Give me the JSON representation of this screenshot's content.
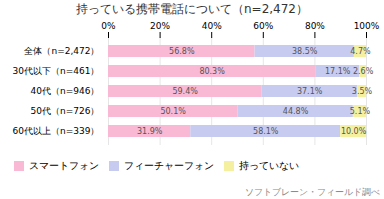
{
  "chart_data": {
    "type": "bar",
    "orientation": "horizontal",
    "stacked": true,
    "title": "持っている携帯電話について（n=2,472）",
    "caption": "ソフトブレーン・フィールド調べ",
    "categories": [
      "全体（n=2,472）",
      "30代以下（n=461）",
      "40代（n=946）",
      "50代（n=726）",
      "60代以上（n=339）"
    ],
    "series": [
      {
        "name": "スマートフォン",
        "color": "#f9b8d4",
        "values": [
          56.8,
          80.3,
          59.4,
          50.1,
          31.9
        ],
        "value_labels": [
          "56.8%",
          "80.3%",
          "59.4%",
          "50.1%",
          "31.9%"
        ]
      },
      {
        "name": "フィーチャーフォン",
        "color": "#c8cbf0",
        "values": [
          38.5,
          17.1,
          37.1,
          44.8,
          58.1
        ],
        "value_labels": [
          "38.5%",
          "17.1%",
          "37.1%",
          "44.8%",
          "58.1%"
        ]
      },
      {
        "name": "持っていない",
        "color": "#f5f0a0",
        "values": [
          4.7,
          2.6,
          3.5,
          5.1,
          10.0
        ],
        "value_labels": [
          "4.7%",
          "2.6%",
          "3.5%",
          "5.1%",
          "10.0%"
        ]
      }
    ],
    "xlim": [
      0,
      100
    ],
    "xticks": [
      {
        "value": 0,
        "label": "0%"
      },
      {
        "value": 20,
        "label": "20%"
      },
      {
        "value": 40,
        "label": "40%"
      },
      {
        "value": 60,
        "label": "60%"
      },
      {
        "value": 80,
        "label": "80%"
      },
      {
        "value": 100,
        "label": "100%"
      }
    ],
    "grid": true,
    "legend": "lower left",
    "data_labels": true
  }
}
